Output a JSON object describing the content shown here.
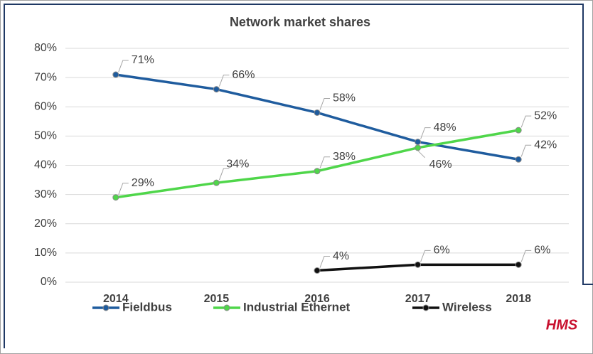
{
  "chart_data": {
    "type": "line",
    "title": "Network market shares",
    "categories": [
      "2014",
      "2015",
      "2016",
      "2017",
      "2018"
    ],
    "series": [
      {
        "name": "Fieldbus",
        "color": "#1f5c9e",
        "values": [
          71,
          66,
          58,
          48,
          42
        ],
        "value_labels": [
          "71%",
          "66%",
          "58%",
          "48%",
          "42%"
        ]
      },
      {
        "name": "Industrial Ethernet",
        "color": "#4fd64a",
        "values": [
          29,
          34,
          38,
          46,
          52
        ],
        "value_labels": [
          "29%",
          "34%",
          "38%",
          "46%",
          "52%"
        ]
      },
      {
        "name": "Wireless",
        "color": "#111111",
        "values": [
          null,
          null,
          4,
          6,
          6
        ],
        "value_labels": [
          null,
          null,
          "4%",
          "6%",
          "6%"
        ]
      }
    ],
    "ylim": [
      0,
      80
    ],
    "yticks": [
      {
        "value": 0,
        "label": "0%"
      },
      {
        "value": 10,
        "label": "10%"
      },
      {
        "value": 20,
        "label": "20%"
      },
      {
        "value": 30,
        "label": "30%"
      },
      {
        "value": 40,
        "label": "40%"
      },
      {
        "value": 50,
        "label": "50%"
      },
      {
        "value": 60,
        "label": "60%"
      },
      {
        "value": 70,
        "label": "70%"
      },
      {
        "value": 80,
        "label": "80%"
      }
    ],
    "grid": true,
    "legend": "bottom",
    "logo": "HMS"
  }
}
